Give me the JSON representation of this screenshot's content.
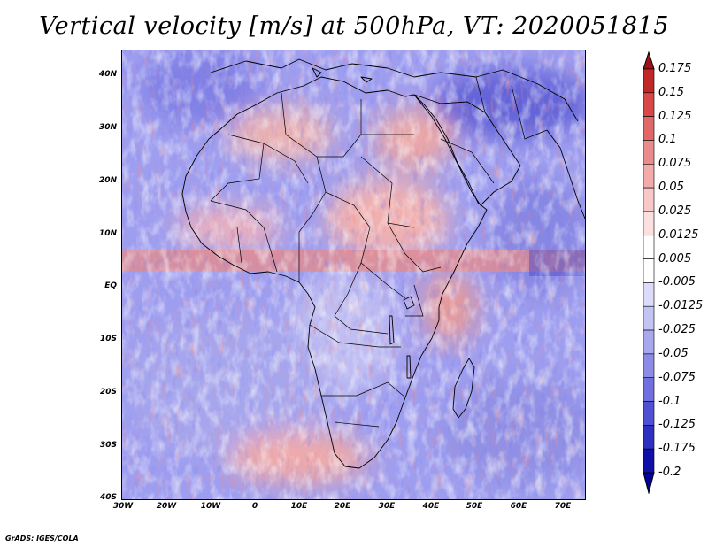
{
  "title": "Vertical velocity [m/s] at 500hPa, VT: 2020051815",
  "credit": "GrADS: IGES/COLA",
  "map": {
    "lat_labels": [
      "40N",
      "30N",
      "20N",
      "10N",
      "EQ",
      "10S",
      "20S",
      "30S",
      "40S"
    ],
    "lon_labels": [
      "30W",
      "20W",
      "10W",
      "0",
      "10E",
      "20E",
      "30E",
      "40E",
      "50E",
      "60E",
      "70E"
    ],
    "extent": {
      "lon": [
        -30,
        76
      ],
      "lat": [
        -40,
        45
      ]
    }
  },
  "colorbar": {
    "labels": [
      "0.175",
      "0.15",
      "0.125",
      "0.1",
      "0.075",
      "0.05",
      "0.025",
      "0.0125",
      "0.005",
      "-0.005",
      "-0.0125",
      "-0.025",
      "-0.05",
      "-0.075",
      "-0.1",
      "-0.125",
      "-0.175",
      "-0.2"
    ],
    "colors": [
      "#a01018",
      "#c02828",
      "#d84848",
      "#e06868",
      "#ea8c8c",
      "#f2aaaa",
      "#f8c8c8",
      "#fce0e0",
      "#ffffff",
      "#ffffff",
      "#dcdcfa",
      "#c4c4f4",
      "#a8a8ee",
      "#8c8ce6",
      "#7070e0",
      "#5050d4",
      "#3030c0",
      "#1010a8",
      "#00009a"
    ]
  },
  "colors": {
    "ascent": "#e06868",
    "descent": "#7070e0",
    "coast": "#000000"
  }
}
